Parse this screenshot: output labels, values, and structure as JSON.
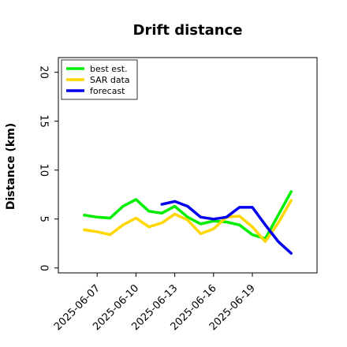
{
  "chart_data": {
    "type": "line",
    "title": "Drift distance",
    "xlabel": "",
    "ylabel": "Distance (km)",
    "ylim": [
      -0.5,
      21.5
    ],
    "yticks": [
      0,
      5,
      10,
      15,
      20
    ],
    "xticks": [
      "2025-06-07",
      "2025-06-10",
      "2025-06-13",
      "2025-06-16",
      "2025-06-19"
    ],
    "xlim": [
      "2025-06-04",
      "2025-06-24"
    ],
    "grid": false,
    "legend_position": "top-left",
    "series": [
      {
        "name": "best est.",
        "color": "#00ee00",
        "x": [
          "2025-06-06",
          "2025-06-07",
          "2025-06-08",
          "2025-06-09",
          "2025-06-10",
          "2025-06-11",
          "2025-06-12",
          "2025-06-13",
          "2025-06-14",
          "2025-06-15",
          "2025-06-16",
          "2025-06-17",
          "2025-06-18",
          "2025-06-19",
          "2025-06-20",
          "2025-06-21",
          "2025-06-22"
        ],
        "values": [
          5.4,
          5.2,
          5.1,
          6.3,
          7.0,
          5.8,
          5.6,
          6.3,
          5.2,
          4.5,
          4.8,
          4.7,
          4.4,
          3.4,
          3.0,
          5.4,
          7.8
        ]
      },
      {
        "name": "SAR data",
        "color": "#ffd700",
        "x": [
          "2025-06-06",
          "2025-06-07",
          "2025-06-08",
          "2025-06-09",
          "2025-06-10",
          "2025-06-11",
          "2025-06-12",
          "2025-06-13",
          "2025-06-14",
          "2025-06-15",
          "2025-06-16",
          "2025-06-17",
          "2025-06-18",
          "2025-06-19",
          "2025-06-20",
          "2025-06-21",
          "2025-06-22"
        ],
        "values": [
          3.9,
          3.7,
          3.4,
          4.4,
          5.1,
          4.2,
          4.6,
          5.5,
          4.9,
          3.5,
          4.0,
          5.2,
          5.3,
          4.2,
          2.7,
          4.6,
          6.9
        ]
      },
      {
        "name": "forecast",
        "color": "#0000ee",
        "x": [
          "2025-06-12",
          "2025-06-13",
          "2025-06-14",
          "2025-06-15",
          "2025-06-16",
          "2025-06-17",
          "2025-06-18",
          "2025-06-19",
          "2025-06-20",
          "2025-06-21",
          "2025-06-22"
        ],
        "values": [
          6.5,
          6.8,
          6.3,
          5.2,
          5.0,
          5.2,
          6.2,
          6.2,
          4.4,
          2.7,
          1.5
        ]
      }
    ]
  }
}
